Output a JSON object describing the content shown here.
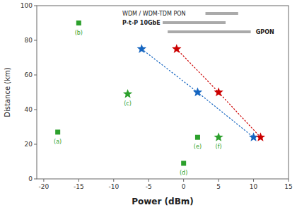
{
  "chart_data": {
    "type": "scatter",
    "xlabel": "Power (dBm)",
    "ylabel": "Distance (km)",
    "xlim": [
      -21,
      15
    ],
    "ylim": [
      0,
      100
    ],
    "xticks": [
      -20,
      -15,
      -10,
      -5,
      0,
      5,
      10,
      15
    ],
    "yticks": [
      0,
      20,
      40,
      60,
      80,
      100
    ],
    "grid": false,
    "series": [
      {
        "color": "#2ca02c",
        "marker": "square",
        "line_style": "none",
        "x": [
          -18,
          -15,
          0,
          2
        ],
        "values": [
          27,
          90,
          9,
          24
        ],
        "labels": [
          "(a)",
          "(b)",
          "(d)",
          "(e)"
        ]
      },
      {
        "color": "#2ca02c",
        "marker": "star",
        "line_style": "none",
        "x": [
          -8,
          5
        ],
        "values": [
          49,
          24
        ],
        "labels": [
          "(c)",
          "(f)"
        ]
      },
      {
        "color": "#1565c0",
        "marker": "star",
        "line_style": "dotted",
        "x": [
          -6,
          2,
          10
        ],
        "values": [
          75,
          50,
          24
        ]
      },
      {
        "color": "#cc0000",
        "marker": "star",
        "line_style": "dotted",
        "x": [
          -1,
          5,
          11
        ],
        "values": [
          75,
          50,
          24
        ]
      }
    ],
    "annotations": [
      "WDM / WDM-TDM PON",
      "P-t-P 10GbE",
      "GPON"
    ]
  }
}
